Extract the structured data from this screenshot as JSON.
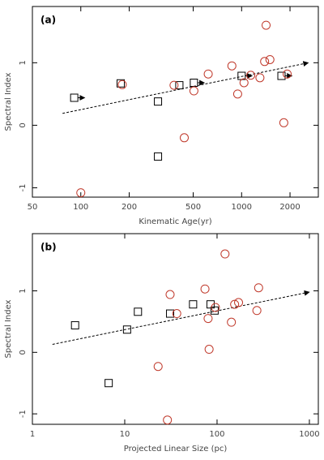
{
  "chart_data": [
    {
      "type": "scatter",
      "label": "(a)",
      "x_label": "Kinematic Age(yr)",
      "y_label": "Spectral Index",
      "xscale": "log",
      "xlim": [
        50,
        3000
      ],
      "ylim": [
        -1.15,
        1.9
      ],
      "xticks": [
        50,
        100,
        200,
        500,
        1000,
        2000
      ],
      "yticks": [
        -1,
        0,
        1
      ],
      "series": [
        {
          "marker": "square",
          "color": "#000000",
          "x": [
            91,
            177,
            302,
            302,
            410,
            505,
            1000,
            1770
          ],
          "values": [
            0.44,
            0.67,
            0.38,
            -0.5,
            0.64,
            0.68,
            0.79,
            0.79
          ],
          "lower_limit": [
            true,
            false,
            false,
            false,
            false,
            true,
            true,
            true
          ]
        },
        {
          "marker": "circle",
          "color": "#c0392b",
          "x": [
            100,
            181,
            380,
            440,
            505,
            620,
            870,
            945,
            1035,
            1140,
            1300,
            1390,
            1420,
            1500,
            1920,
            1830
          ],
          "values": [
            -1.08,
            0.65,
            0.64,
            -0.2,
            0.55,
            0.82,
            0.95,
            0.5,
            0.68,
            0.8,
            0.76,
            1.02,
            1.6,
            1.05,
            0.82,
            0.04
          ]
        }
      ],
      "trend": {
        "x": [
          77,
          2600
        ],
        "values": [
          0.19,
          1.0
        ]
      }
    },
    {
      "type": "scatter",
      "label": "(b)",
      "x_label": "Projected Linear Size (pc)",
      "y_label": "Spectral Index",
      "xscale": "log",
      "xlim": [
        1,
        1250
      ],
      "ylim": [
        -1.17,
        1.93
      ],
      "xticks": [
        1,
        10,
        100,
        1000
      ],
      "yticks": [
        -1,
        0,
        1
      ],
      "series": [
        {
          "marker": "square",
          "color": "#000000",
          "x": [
            2.9,
            6.7,
            10.6,
            13.9,
            31,
            55,
            85,
            94
          ],
          "values": [
            0.44,
            -0.5,
            0.37,
            0.66,
            0.63,
            0.78,
            0.78,
            0.68
          ]
        },
        {
          "marker": "circle",
          "color": "#c0392b",
          "x": [
            23,
            29,
            31,
            36.6,
            74,
            80,
            82,
            96,
            122,
            143,
            155,
            171,
            282,
            270
          ],
          "values": [
            -0.23,
            -1.1,
            0.94,
            0.63,
            1.03,
            0.55,
            0.05,
            0.73,
            1.6,
            0.49,
            0.78,
            0.81,
            1.05,
            0.68
          ]
        }
      ],
      "trend": {
        "x": [
          1.65,
          1000
        ],
        "values": [
          0.13,
          0.98
        ]
      }
    }
  ]
}
